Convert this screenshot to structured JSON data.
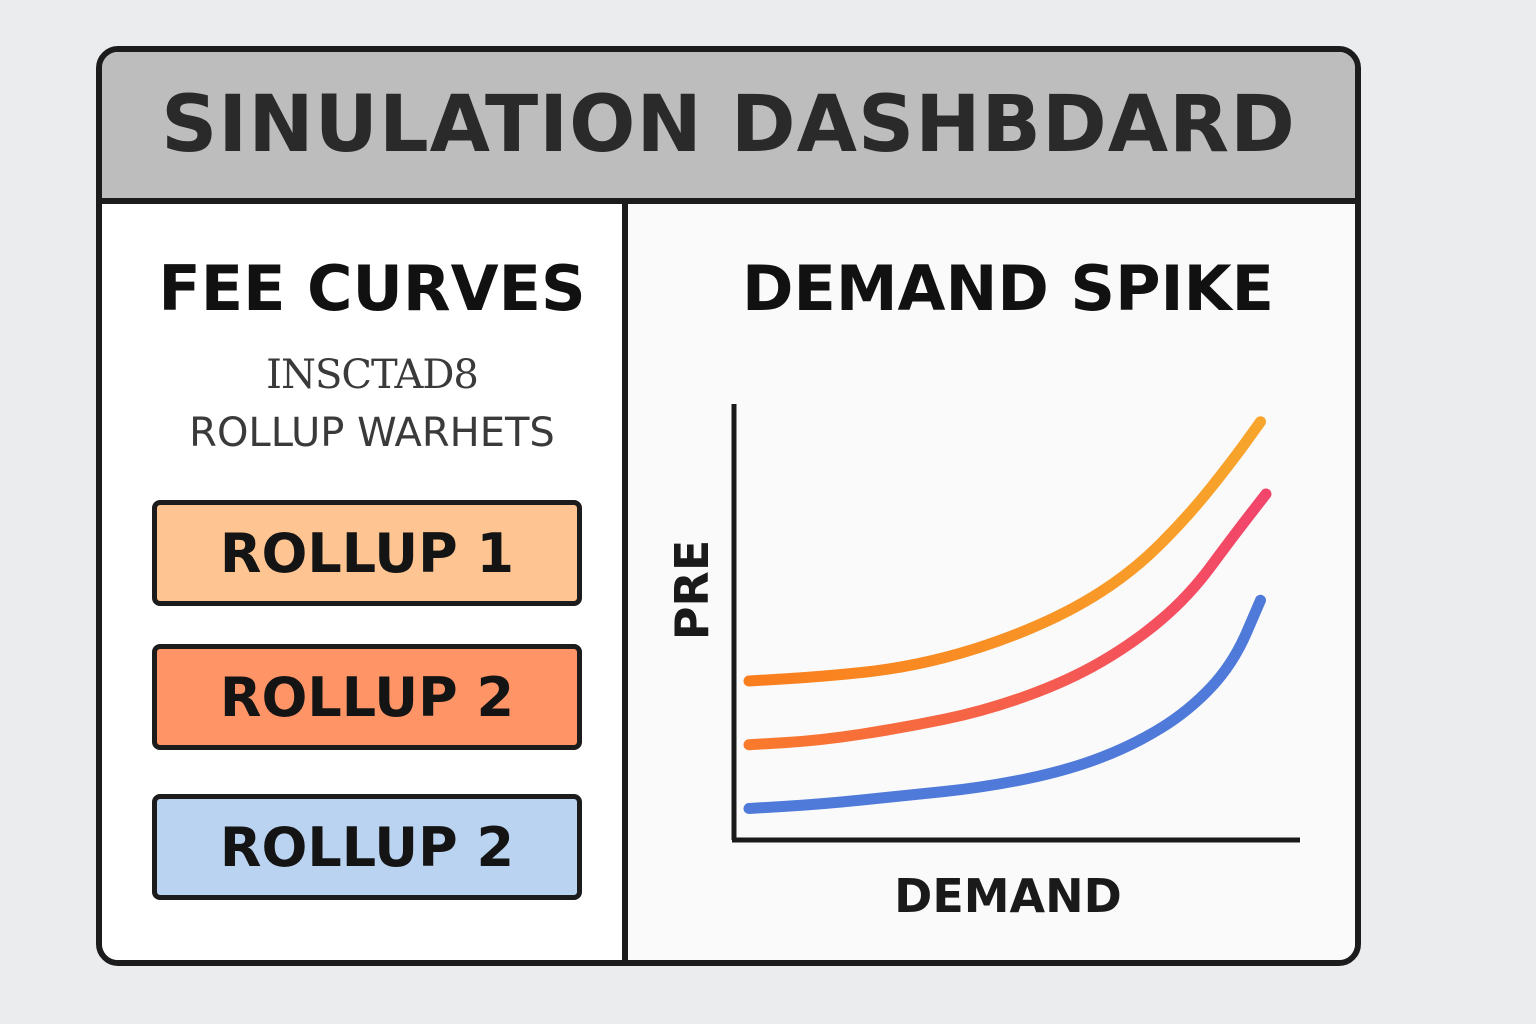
{
  "title": "SINULATION DASHBDARD",
  "left_panel": {
    "title": "FEE CURVES",
    "subtitle_line1": "INSCTAD8",
    "subtitle_line2": "ROLLUP WARHETS",
    "buttons": [
      {
        "label": "ROLLUP 1",
        "color": "#fec491"
      },
      {
        "label": "ROLLUP 2",
        "color": "#ff9467"
      },
      {
        "label": "ROLLUP 2",
        "color": "#bad3f0"
      }
    ]
  },
  "right_panel": {
    "title": "DEMAND SPIKE"
  },
  "chart_data": {
    "type": "line",
    "title": "DEMAND SPIKE",
    "xlabel": "DEMAND",
    "ylabel": "PRE",
    "xlim": [
      0,
      1
    ],
    "ylim": [
      0,
      1
    ],
    "grid": false,
    "series": [
      {
        "color": "#f79a2a",
        "gradient_end": "#fa7d1e",
        "x": [
          0.02,
          0.15,
          0.3,
          0.45,
          0.6,
          0.72,
          0.82,
          0.9,
          0.95
        ],
        "y": [
          0.36,
          0.37,
          0.39,
          0.44,
          0.52,
          0.62,
          0.75,
          0.88,
          0.97
        ]
      },
      {
        "color": "#f2456c",
        "gradient_end": "#f97a2b",
        "x": [
          0.02,
          0.15,
          0.3,
          0.45,
          0.6,
          0.72,
          0.82,
          0.9,
          0.96
        ],
        "y": [
          0.21,
          0.22,
          0.25,
          0.29,
          0.36,
          0.45,
          0.56,
          0.7,
          0.8
        ]
      },
      {
        "color": "#4f7ad9",
        "x": [
          0.02,
          0.15,
          0.3,
          0.45,
          0.6,
          0.72,
          0.82,
          0.9,
          0.95
        ],
        "y": [
          0.06,
          0.07,
          0.09,
          0.11,
          0.15,
          0.21,
          0.29,
          0.4,
          0.55
        ]
      }
    ]
  }
}
